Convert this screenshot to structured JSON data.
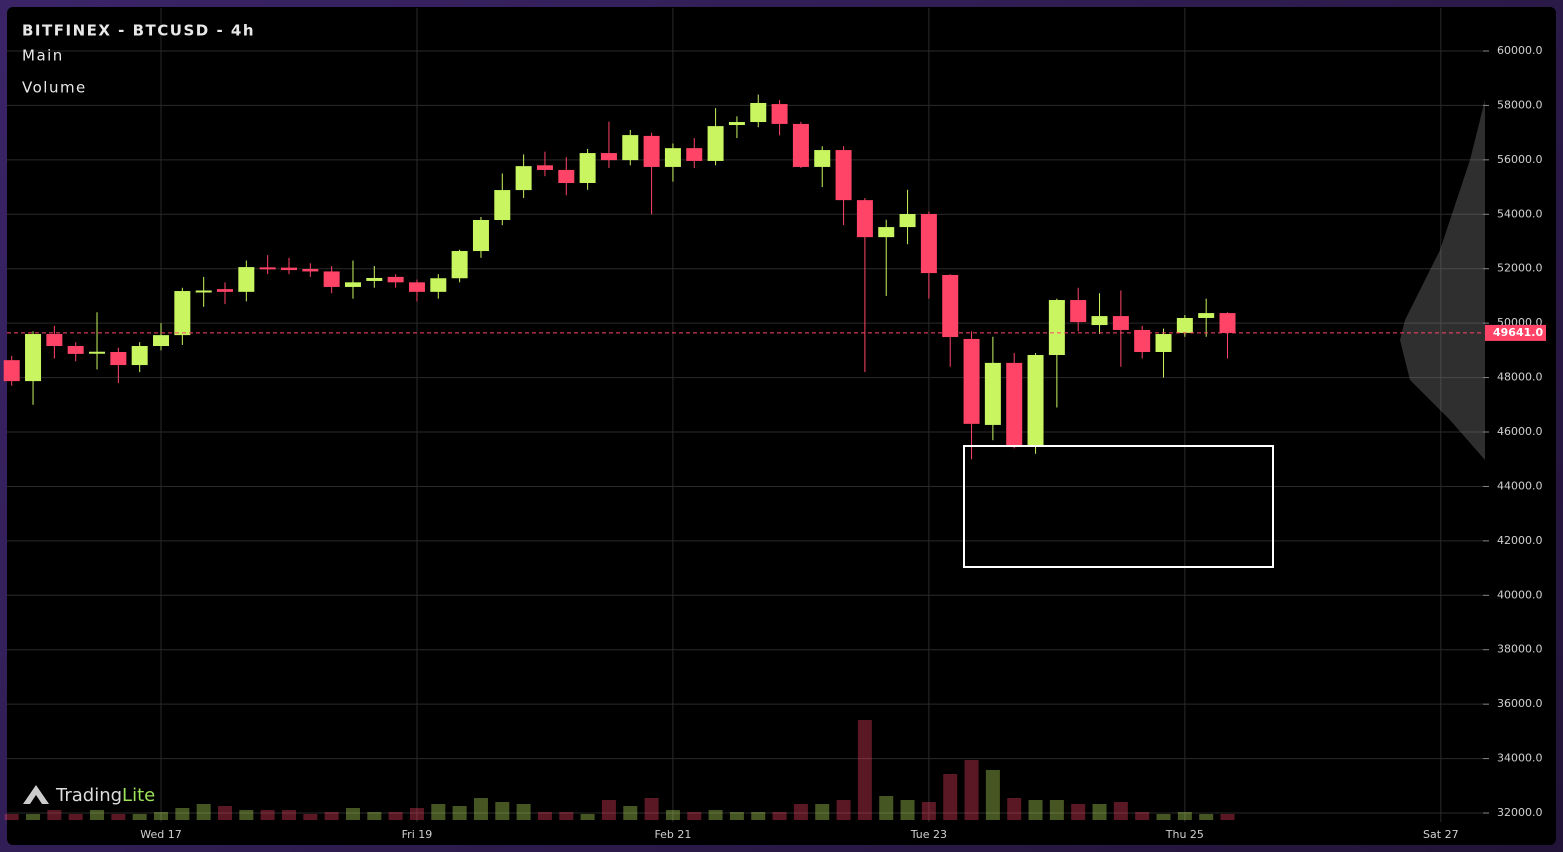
{
  "chart_data": {
    "type": "candlestick",
    "title": "BITFINEX - BTCUSD - 4h",
    "panes": [
      "Main",
      "Volume"
    ],
    "brand": [
      "Trading",
      "Lite"
    ],
    "up_color": "#c8f560",
    "down_color": "#ff4468",
    "grid": true,
    "categories": [
      null,
      null,
      null,
      null,
      null,
      null,
      null,
      "Wed 17",
      null,
      null,
      null,
      null,
      null,
      null,
      null,
      null,
      null,
      null,
      null,
      "Fri 19",
      null,
      null,
      null,
      null,
      null,
      null,
      null,
      null,
      null,
      null,
      null,
      "Feb 21",
      null,
      null,
      null,
      null,
      null,
      null,
      null,
      null,
      null,
      null,
      null,
      "Tue 23",
      null,
      null,
      null,
      null,
      null,
      null,
      null,
      null,
      null,
      null,
      null,
      "Thu 25",
      null,
      null,
      null,
      null,
      null,
      null,
      null,
      null,
      null,
      null,
      null,
      "Sat 27"
    ],
    "open": [
      48640,
      47870,
      49600,
      49160,
      48900,
      48940,
      48460,
      49160,
      49560,
      51150,
      51250,
      51150,
      52050,
      52040,
      51990,
      51900,
      51330,
      51550,
      51700,
      51500,
      51150,
      51650,
      52650,
      53790,
      54890,
      55800,
      55630,
      55150,
      56250,
      55990,
      56880,
      55740,
      56430,
      55960,
      57280,
      57390,
      58050,
      57320,
      55740,
      56360,
      54520,
      53160,
      53530,
      54010,
      51770,
      49420,
      46260,
      48540,
      45450,
      48830,
      50850,
      49930,
      50260,
      49750,
      48940,
      49640,
      50190,
      50370,
      null,
      null,
      null,
      null,
      null,
      null,
      null,
      null,
      null,
      null
    ],
    "high": [
      48800,
      49700,
      49900,
      49300,
      50400,
      49100,
      49300,
      50000,
      51300,
      51700,
      51500,
      52300,
      52500,
      52400,
      52200,
      52100,
      52300,
      52100,
      51800,
      51600,
      51800,
      52700,
      53900,
      55500,
      56200,
      56300,
      56100,
      56400,
      57400,
      57100,
      57000,
      56600,
      56800,
      57900,
      57600,
      58400,
      58200,
      57400,
      56500,
      56500,
      54600,
      53800,
      54900,
      54100,
      51800,
      49700,
      49500,
      48900,
      48900,
      50900,
      51300,
      51100,
      51200,
      49900,
      49800,
      50300,
      50900,
      50400,
      null,
      null,
      null,
      null,
      null,
      null,
      null,
      null,
      null,
      null
    ],
    "low": [
      47700,
      47000,
      48700,
      48600,
      48300,
      47800,
      48200,
      49000,
      49200,
      50600,
      50700,
      50800,
      51800,
      51800,
      51700,
      51100,
      50900,
      51300,
      51300,
      50800,
      50900,
      51500,
      52400,
      53600,
      54600,
      55400,
      54700,
      54900,
      55700,
      55800,
      54000,
      55200,
      55700,
      55800,
      56800,
      57200,
      56900,
      55700,
      55000,
      53600,
      48200,
      51000,
      52900,
      50900,
      48400,
      45000,
      45700,
      45400,
      45200,
      46900,
      49700,
      49600,
      48400,
      48700,
      48000,
      49500,
      49500,
      48700,
      null,
      null,
      null,
      null,
      null,
      null,
      null,
      null,
      null,
      null
    ],
    "close": [
      47870,
      49600,
      49160,
      48870,
      48950,
      48460,
      49160,
      49560,
      51180,
      51200,
      51150,
      52060,
      51990,
      51950,
      51900,
      51330,
      51500,
      51660,
      51500,
      51150,
      51650,
      52650,
      53790,
      54890,
      55770,
      55630,
      55150,
      56250,
      55990,
      56910,
      55740,
      56430,
      55960,
      57240,
      57390,
      58090,
      57320,
      55740,
      56360,
      54520,
      53160,
      53530,
      54010,
      51840,
      49490,
      46300,
      48540,
      45450,
      48830,
      50850,
      50040,
      50260,
      49750,
      48940,
      49600,
      50190,
      50370,
      49641,
      null,
      null,
      null,
      null,
      null,
      null,
      null,
      null,
      null,
      null
    ],
    "volume": [
      6,
      6,
      10,
      6,
      10,
      6,
      6,
      8,
      12,
      16,
      14,
      10,
      10,
      10,
      6,
      8,
      12,
      8,
      8,
      12,
      16,
      14,
      22,
      18,
      16,
      8,
      8,
      6,
      20,
      14,
      22,
      10,
      8,
      10,
      8,
      8,
      8,
      16,
      16,
      20,
      100,
      24,
      20,
      18,
      46,
      60,
      50,
      22,
      20,
      20,
      16,
      16,
      18,
      8,
      6,
      8,
      6,
      6,
      null,
      null,
      null,
      null,
      null,
      null,
      null,
      null,
      null,
      null
    ],
    "ylim": [
      31670,
      61580
    ],
    "yticks": [
      {
        "value": 32000,
        "label": "32000.0"
      },
      {
        "value": 34000,
        "label": "34000.0"
      },
      {
        "value": 36000,
        "label": "36000.0"
      },
      {
        "value": 38000,
        "label": "38000.0"
      },
      {
        "value": 40000,
        "label": "40000.0"
      },
      {
        "value": 42000,
        "label": "42000.0"
      },
      {
        "value": 44000,
        "label": "44000.0"
      },
      {
        "value": 46000,
        "label": "46000.0"
      },
      {
        "value": 48000,
        "label": "48000.0"
      },
      {
        "value": 50000,
        "label": "50000.0"
      },
      {
        "value": 52000,
        "label": "52000.0"
      },
      {
        "value": 54000,
        "label": "54000.0"
      },
      {
        "value": 56000,
        "label": "56000.0"
      },
      {
        "value": 58000,
        "label": "58000.0"
      },
      {
        "value": 60000,
        "label": "60000.0"
      }
    ],
    "last_price": {
      "value": 49641,
      "label": "49641.0"
    }
  }
}
